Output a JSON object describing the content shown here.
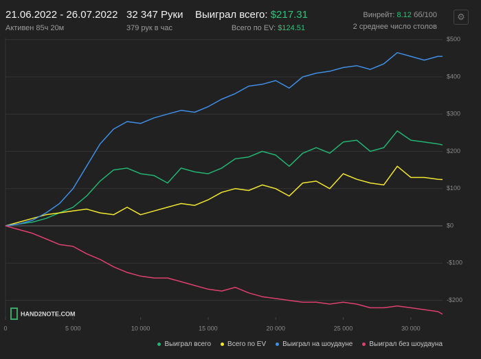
{
  "header": {
    "dates": "21.06.2022 - 26.07.2022",
    "active": "Активен 85ч 20м",
    "hands": "32 347 Руки",
    "rate": "379 рук в час",
    "won_label": "Выиграл всего:",
    "won_value": "$217.31",
    "ev_label": "Всего по EV:",
    "ev_value": "$124.51",
    "winrate_label": "Винрейт:",
    "winrate_value": "8.12",
    "winrate_unit": "бб/100",
    "tables": "2 среднее число столов",
    "logo": "HAND2NOTE.COM"
  },
  "chart_data": {
    "type": "line",
    "x": [
      0,
      1000,
      2000,
      3000,
      4000,
      5000,
      6000,
      7000,
      8000,
      9000,
      10000,
      11000,
      12000,
      13000,
      14000,
      15000,
      16000,
      17000,
      18000,
      19000,
      20000,
      21000,
      22000,
      23000,
      24000,
      25000,
      26000,
      27000,
      28000,
      29000,
      30000,
      31000,
      32000,
      32347
    ],
    "xlim": [
      0,
      32347
    ],
    "xticks": [
      0,
      {
        "value": 5000,
        "label": "5 000"
      },
      {
        "value": 10000,
        "label": "10 000"
      },
      {
        "value": 15000,
        "label": "15 000"
      },
      {
        "value": 20000,
        "label": "20 000"
      },
      {
        "value": 25000,
        "label": "25 000"
      },
      {
        "value": 30000,
        "label": "30 000"
      }
    ],
    "ylim": [
      -245,
      505
    ],
    "yticks": [
      {
        "value": -200,
        "label": "-$200"
      },
      {
        "value": -100,
        "label": "-$100"
      },
      {
        "value": 0,
        "label": "$0"
      },
      {
        "value": 100,
        "label": "$100"
      },
      {
        "value": 200,
        "label": "$200"
      },
      {
        "value": 300,
        "label": "$300"
      },
      {
        "value": 400,
        "label": "$400"
      },
      {
        "value": 500,
        "label": "$500"
      }
    ],
    "grid": true,
    "series": [
      {
        "name": "Выиграл всего",
        "color": "#22b573",
        "values": [
          0,
          5,
          10,
          20,
          35,
          50,
          80,
          120,
          150,
          155,
          140,
          135,
          115,
          155,
          145,
          140,
          155,
          180,
          185,
          200,
          190,
          160,
          195,
          210,
          195,
          225,
          230,
          200,
          210,
          255,
          230,
          225,
          220,
          217.31
        ]
      },
      {
        "name": "Всего по EV",
        "color": "#f2e830",
        "values": [
          0,
          10,
          20,
          30,
          35,
          40,
          45,
          35,
          30,
          50,
          30,
          40,
          50,
          60,
          55,
          70,
          90,
          100,
          95,
          110,
          100,
          80,
          115,
          120,
          100,
          140,
          125,
          115,
          110,
          160,
          130,
          130,
          125,
          124.51
        ]
      },
      {
        "name": "Выиграл на шоудауне",
        "color": "#3f8fe6",
        "values": [
          0,
          5,
          15,
          35,
          60,
          100,
          160,
          220,
          260,
          280,
          275,
          290,
          300,
          310,
          305,
          320,
          340,
          355,
          375,
          380,
          390,
          370,
          400,
          410,
          415,
          425,
          430,
          420,
          435,
          465,
          455,
          445,
          455,
          455
        ]
      },
      {
        "name": "Выиграл без шоудауна",
        "color": "#e0406f",
        "values": [
          0,
          -10,
          -20,
          -35,
          -50,
          -55,
          -75,
          -90,
          -110,
          -125,
          -135,
          -140,
          -140,
          -150,
          -160,
          -170,
          -175,
          -165,
          -180,
          -190,
          -195,
          -200,
          -205,
          -205,
          -210,
          -205,
          -210,
          -220,
          -220,
          -215,
          -220,
          -225,
          -230,
          -237
        ]
      }
    ]
  }
}
